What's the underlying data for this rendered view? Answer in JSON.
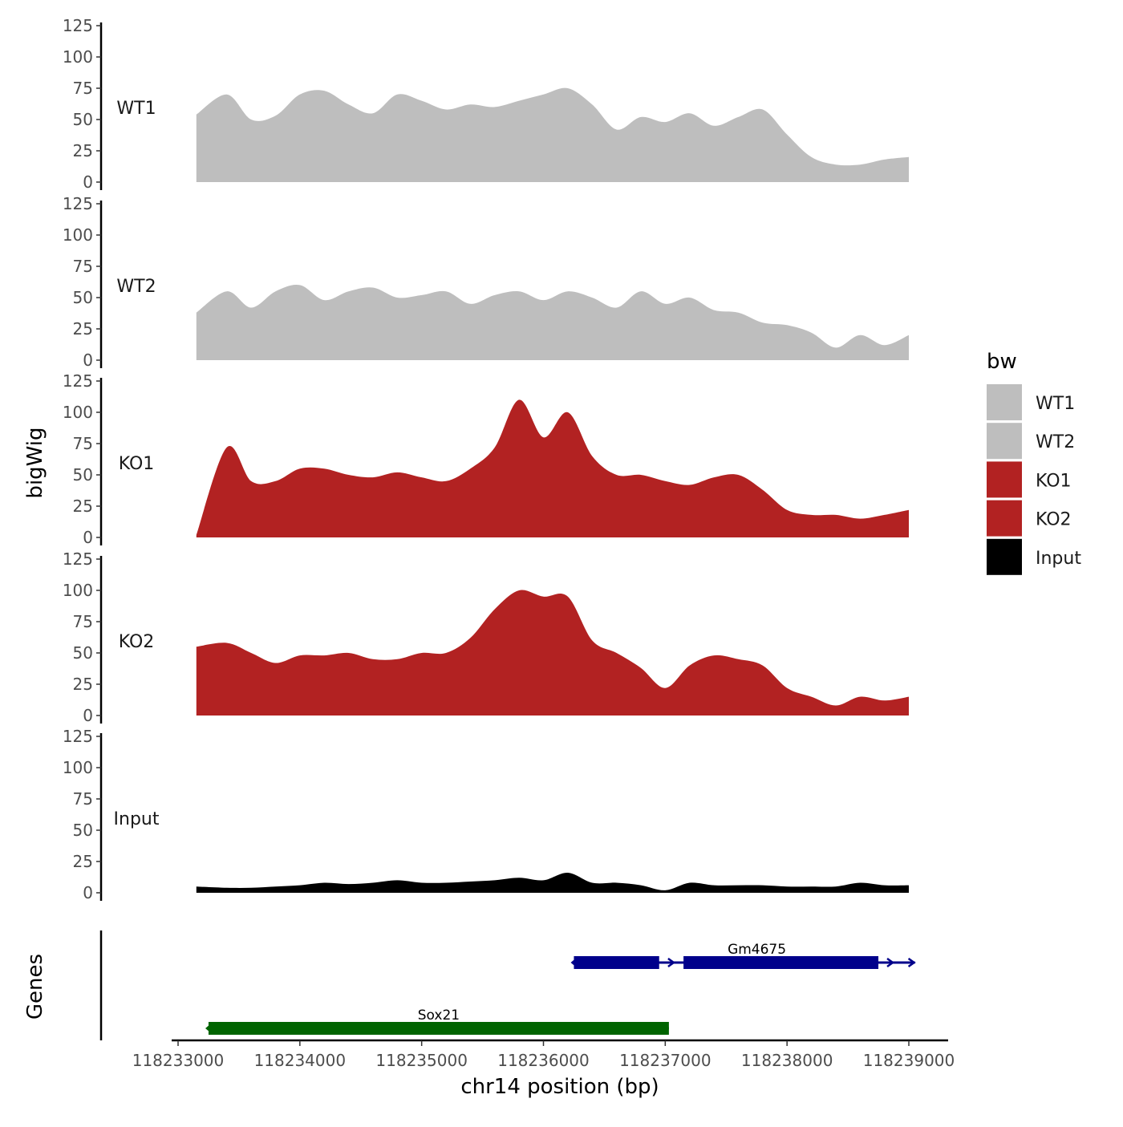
{
  "chart_data": {
    "type": "area",
    "ylabel": "bigWig",
    "gene_track_label": "Genes",
    "xlabel": "chr14 position (bp)",
    "x_range": [
      118233000,
      118239000
    ],
    "x_ticks": [
      "118233000",
      "118234000",
      "118235000",
      "118236000",
      "118237000",
      "118238000",
      "118239000"
    ],
    "y_range": [
      0,
      125
    ],
    "y_ticks": [
      "0",
      "25",
      "50",
      "75",
      "100",
      "125"
    ],
    "legend": {
      "title": "bw",
      "placement": "right",
      "entries": [
        {
          "name": "WT1",
          "color": "#bebebe"
        },
        {
          "name": "WT2",
          "color": "#bebebe"
        },
        {
          "name": "KO1",
          "color": "#b22222"
        },
        {
          "name": "KO2",
          "color": "#b22222"
        },
        {
          "name": "Input",
          "color": "#000000"
        }
      ]
    },
    "x": [
      118233150,
      118233400,
      118233600,
      118233800,
      118234000,
      118234200,
      118234400,
      118234600,
      118234800,
      118235000,
      118235200,
      118235400,
      118235600,
      118235800,
      118236000,
      118236200,
      118236400,
      118236600,
      118236800,
      118237000,
      118237200,
      118237400,
      118237600,
      118237800,
      118238000,
      118238200,
      118238400,
      118238600,
      118238800,
      118239000
    ],
    "series": [
      {
        "name": "WT1",
        "color": "#bebebe",
        "values": [
          54,
          70,
          50,
          53,
          70,
          73,
          62,
          55,
          70,
          65,
          58,
          62,
          60,
          65,
          70,
          75,
          62,
          42,
          52,
          48,
          55,
          45,
          52,
          58,
          38,
          20,
          14,
          14,
          18,
          20
        ]
      },
      {
        "name": "WT2",
        "color": "#bebebe",
        "values": [
          38,
          55,
          42,
          55,
          60,
          48,
          55,
          58,
          50,
          52,
          55,
          45,
          52,
          55,
          48,
          55,
          50,
          42,
          55,
          45,
          50,
          40,
          38,
          30,
          28,
          22,
          10,
          20,
          12,
          20
        ]
      },
      {
        "name": "KO1",
        "color": "#b22222",
        "values": [
          2,
          72,
          45,
          45,
          55,
          55,
          50,
          48,
          52,
          48,
          45,
          55,
          72,
          110,
          80,
          100,
          65,
          50,
          50,
          45,
          42,
          48,
          50,
          38,
          22,
          18,
          18,
          15,
          18,
          22
        ]
      },
      {
        "name": "KO2",
        "color": "#b22222",
        "values": [
          55,
          58,
          50,
          42,
          48,
          48,
          50,
          45,
          45,
          50,
          50,
          62,
          85,
          100,
          95,
          95,
          60,
          50,
          38,
          22,
          40,
          48,
          45,
          40,
          22,
          15,
          8,
          15,
          12,
          15
        ]
      },
      {
        "name": "Input",
        "color": "#000000",
        "values": [
          5,
          4,
          4,
          5,
          6,
          8,
          7,
          8,
          10,
          8,
          8,
          9,
          10,
          12,
          10,
          16,
          8,
          8,
          6,
          2,
          8,
          6,
          6,
          6,
          5,
          5,
          5,
          8,
          6,
          6
        ]
      }
    ],
    "genes": [
      {
        "name": "Sox21",
        "start": 118233250,
        "end": 118237030,
        "strand": "-",
        "color": "#006400",
        "row": 1
      },
      {
        "name": "Gm4675",
        "start": 118236250,
        "end": 118239050,
        "strand": "+",
        "color": "#00008b",
        "row": 0,
        "exons": [
          [
            118236250,
            118236950
          ],
          [
            118237150,
            118238750
          ]
        ]
      }
    ]
  }
}
